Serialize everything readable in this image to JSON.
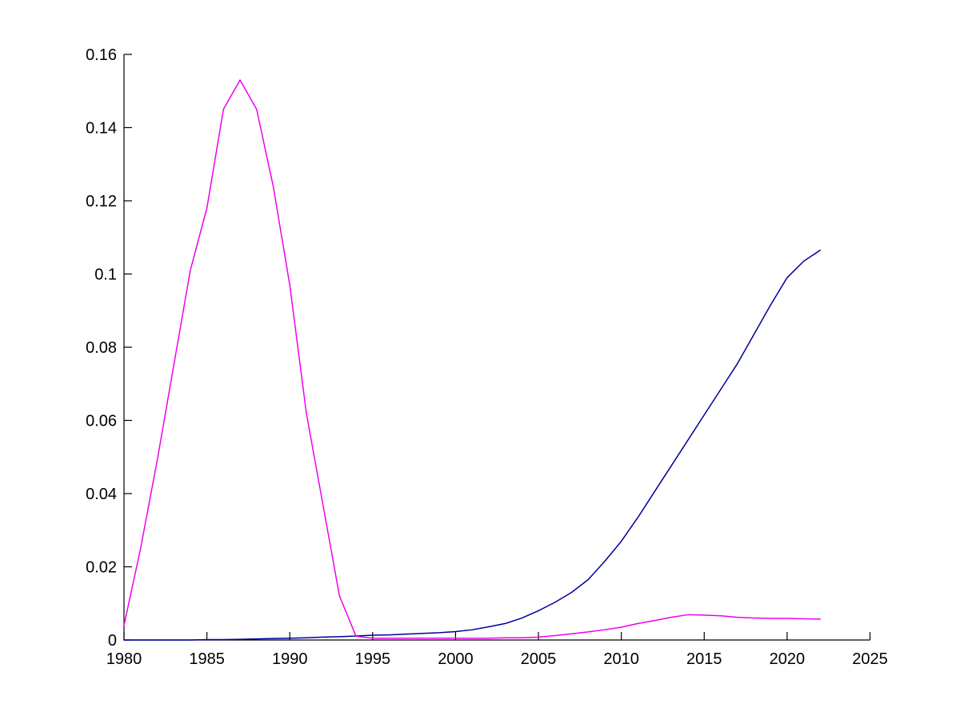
{
  "figure": {
    "background": "#ffffff",
    "axis_color": "#000000",
    "tick_label_color": "#000000"
  },
  "chart_data": {
    "type": "line",
    "title": "",
    "xlabel": "",
    "ylabel": "",
    "xlim": [
      1980,
      2025
    ],
    "ylim": [
      0,
      0.16
    ],
    "grid": false,
    "legend": "none",
    "x_ticks": [
      1980,
      1985,
      1990,
      1995,
      2000,
      2005,
      2010,
      2015,
      2020,
      2025
    ],
    "x_tick_labels": [
      "1980",
      "1985",
      "1990",
      "1995",
      "2000",
      "2005",
      "2010",
      "2015",
      "2020",
      "2025"
    ],
    "y_ticks": [
      0,
      0.02,
      0.04,
      0.06,
      0.08,
      0.1,
      0.12,
      0.14,
      0.16
    ],
    "y_tick_labels": [
      "0",
      "0.02",
      "0.04",
      "0.06",
      "0.08",
      "0.1",
      "0.12",
      "0.14",
      "0.16"
    ],
    "x": [
      1980,
      1981,
      1982,
      1983,
      1984,
      1985,
      1986,
      1987,
      1988,
      1989,
      1990,
      1991,
      1992,
      1993,
      1994,
      1995,
      1996,
      1997,
      1998,
      1999,
      2000,
      2001,
      2002,
      2003,
      2004,
      2005,
      2006,
      2007,
      2008,
      2009,
      2010,
      2011,
      2012,
      2013,
      2014,
      2015,
      2016,
      2017,
      2018,
      2019,
      2020,
      2021,
      2022
    ],
    "series": [
      {
        "name": "navy-line",
        "color": "#000099",
        "values": [
          0,
          0,
          0,
          0,
          0,
          0.0001,
          0.0001,
          0.0002,
          0.0003,
          0.0004,
          0.0005,
          0.0006,
          0.0008,
          0.0009,
          0.0011,
          0.0013,
          0.0014,
          0.0016,
          0.0018,
          0.002,
          0.0023,
          0.0028,
          0.0036,
          0.0045,
          0.006,
          0.008,
          0.0103,
          0.013,
          0.0165,
          0.0215,
          0.027,
          0.0335,
          0.0405,
          0.0475,
          0.0545,
          0.0615,
          0.0685,
          0.0755,
          0.0835,
          0.0915,
          0.099,
          0.1035,
          0.1065
        ]
      },
      {
        "name": "magenta-line",
        "color": "#EE00EE",
        "values": [
          0.004,
          0.025,
          0.049,
          0.075,
          0.101,
          0.118,
          0.145,
          0.153,
          0.145,
          0.124,
          0.097,
          0.062,
          0.037,
          0.012,
          0.001,
          0.0005,
          0.0005,
          0.0005,
          0.0005,
          0.0005,
          0.0005,
          0.0005,
          0.0005,
          0.0006,
          0.0006,
          0.0008,
          0.0012,
          0.0017,
          0.0022,
          0.0028,
          0.0035,
          0.0045,
          0.0053,
          0.0062,
          0.0069,
          0.0068,
          0.0066,
          0.0062,
          0.006,
          0.0059,
          0.0059,
          0.0058,
          0.0057
        ]
      }
    ]
  }
}
